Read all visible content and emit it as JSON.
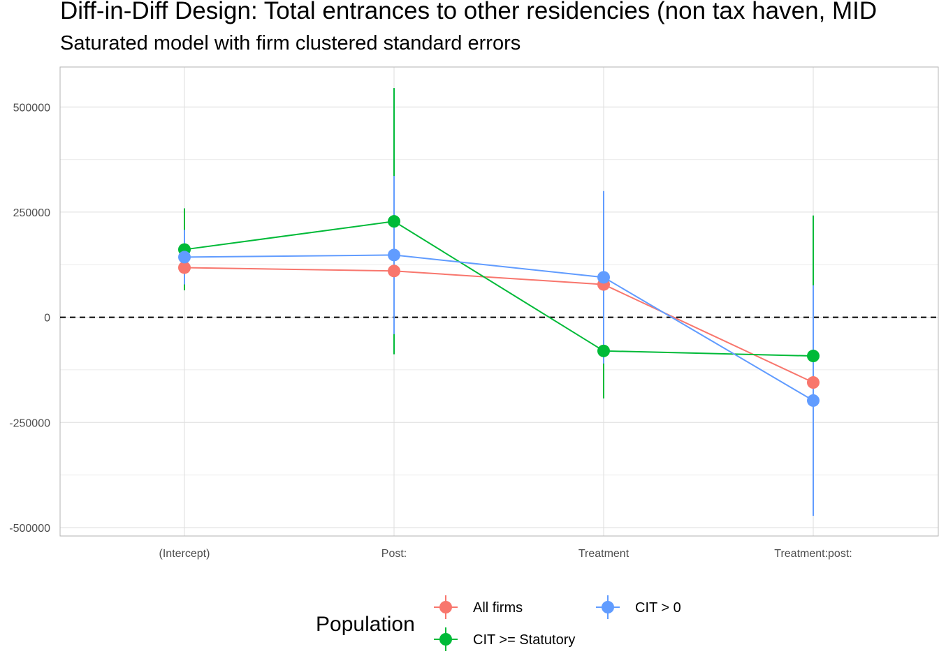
{
  "chart_data": {
    "type": "scatter",
    "title": "Diff-in-Diff Design: Total entrances to other residencies (non tax haven, MID",
    "subtitle": "Saturated model with firm clustered standard errors",
    "xlabel": "",
    "ylabel": "",
    "categories": [
      "(Intercept)",
      "Post:",
      "Treatment",
      "Treatment:post:"
    ],
    "y_ticks": [
      500000,
      250000,
      0,
      -250000,
      -500000
    ],
    "y_tick_labels": [
      "500000",
      "250000",
      "0",
      "-250000",
      "-500000"
    ],
    "ylim": [
      -520000,
      595000
    ],
    "reference_line": 0,
    "grid": true,
    "legend": {
      "title": "Population",
      "position": "bottom"
    },
    "series": [
      {
        "name": "All firms",
        "color": "#F8766D",
        "estimates": [
          118000,
          110000,
          78000,
          -155000
        ],
        "lower": [
          72000,
          -40000,
          10000,
          -280000
        ],
        "upper": [
          164000,
          260000,
          146000,
          -30000
        ]
      },
      {
        "name": "CIT >= Statutory",
        "color": "#00BA38",
        "estimates": [
          161000,
          228000,
          -80000,
          -92000
        ],
        "lower": [
          64000,
          -88000,
          -193000,
          -450000
        ],
        "upper": [
          259000,
          545000,
          33000,
          242000
        ]
      },
      {
        "name": "CIT > 0",
        "color": "#619CFF",
        "estimates": [
          143000,
          148000,
          95000,
          -198000
        ],
        "lower": [
          78000,
          -40000,
          -110000,
          -472000
        ],
        "upper": [
          208000,
          336000,
          300000,
          76000
        ]
      }
    ]
  }
}
